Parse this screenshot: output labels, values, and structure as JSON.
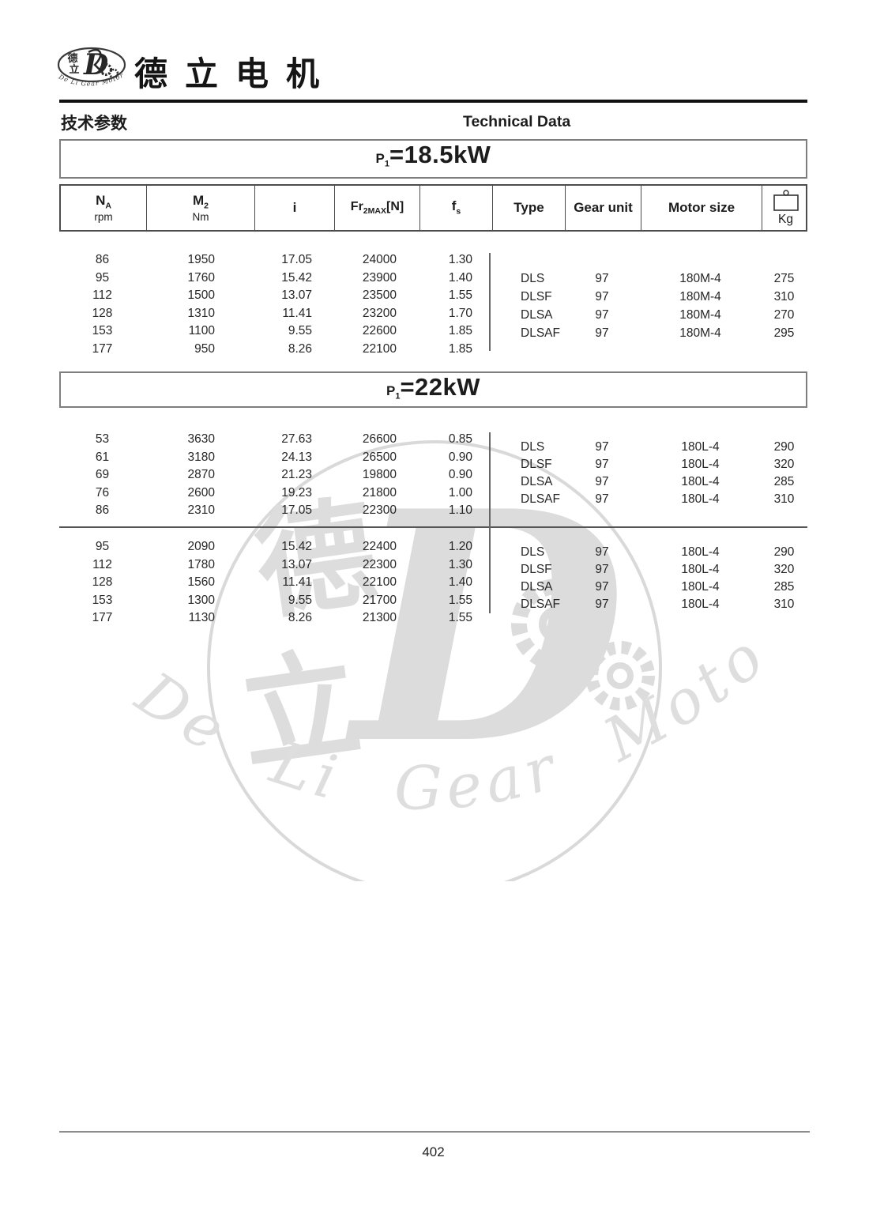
{
  "header": {
    "brand_cn": "德立电机",
    "logo": {
      "cn_top": "德",
      "cn_bottom": "立",
      "letter": "D",
      "arc_text": "De Li Gear Motor"
    },
    "section_cn": "技术参数",
    "section_en": "Technical Data"
  },
  "columns": {
    "na_main": "N",
    "na_sub": "A",
    "na_unit": "rpm",
    "m2_main": "M",
    "m2_sub": "2",
    "m2_unit": "Nm",
    "i": "i",
    "fr_main": "Fr",
    "fr_sub": "2MAX",
    "fr_after": "[N]",
    "fs_main": "f",
    "fs_sub": "s",
    "type": "Type",
    "gear_unit": "Gear unit",
    "motor_size": "Motor size",
    "kg": "Kg"
  },
  "tables": [
    {
      "title": {
        "p": "P",
        "sub": "1",
        "value": "=18.5kW"
      },
      "groups": [
        {
          "rows": [
            [
              "86",
              "1950",
              "17.05",
              "24000",
              "1.30"
            ],
            [
              "95",
              "1760",
              "15.42",
              "23900",
              "1.40"
            ],
            [
              "112",
              "1500",
              "13.07",
              "23500",
              "1.55"
            ],
            [
              "128",
              "1310",
              "11.41",
              "23200",
              "1.70"
            ],
            [
              "153",
              "1100",
              "9.55",
              "22600",
              "1.85"
            ],
            [
              "177",
              "950",
              "8.26",
              "22100",
              "1.85"
            ]
          ],
          "type_rows": [
            [
              "DLS",
              "97",
              "180M-4",
              "275"
            ],
            [
              "DLSF",
              "97",
              "180M-4",
              "310"
            ],
            [
              "DLSA",
              "97",
              "180M-4",
              "270"
            ],
            [
              "DLSAF",
              "97",
              "180M-4",
              "295"
            ]
          ]
        }
      ]
    },
    {
      "title": {
        "p": "P",
        "sub": "1",
        "value": "=22kW"
      },
      "groups": [
        {
          "rows": [
            [
              "53",
              "3630",
              "27.63",
              "26600",
              "0.85"
            ],
            [
              "61",
              "3180",
              "24.13",
              "26500",
              "0.90"
            ],
            [
              "69",
              "2870",
              "21.23",
              "19800",
              "0.90"
            ],
            [
              "76",
              "2600",
              "19.23",
              "21800",
              "1.00"
            ],
            [
              "86",
              "2310",
              "17.05",
              "22300",
              "1.10"
            ]
          ],
          "type_rows": [
            [
              "DLS",
              "97",
              "180L-4",
              "290"
            ],
            [
              "DLSF",
              "97",
              "180L-4",
              "320"
            ],
            [
              "DLSA",
              "97",
              "180L-4",
              "285"
            ],
            [
              "DLSAF",
              "97",
              "180L-4",
              "310"
            ]
          ]
        },
        {
          "rows": [
            [
              "95",
              "2090",
              "15.42",
              "22400",
              "1.20"
            ],
            [
              "112",
              "1780",
              "13.07",
              "22300",
              "1.30"
            ],
            [
              "128",
              "1560",
              "11.41",
              "22100",
              "1.40"
            ],
            [
              "153",
              "1300",
              "9.55",
              "21700",
              "1.55"
            ],
            [
              "177",
              "1130",
              "8.26",
              "21300",
              "1.55"
            ]
          ],
          "type_rows": [
            [
              "DLS",
              "97",
              "180L-4",
              "290"
            ],
            [
              "DLSF",
              "97",
              "180L-4",
              "320"
            ],
            [
              "DLSA",
              "97",
              "180L-4",
              "285"
            ],
            [
              "DLSAF",
              "97",
              "180L-4",
              "310"
            ]
          ]
        }
      ]
    }
  ],
  "watermark": {
    "char_top": "德",
    "char_bottom": "立",
    "letter": "D",
    "arc_text": "De Li Gear Motor"
  },
  "footer": {
    "page_number": "402"
  }
}
